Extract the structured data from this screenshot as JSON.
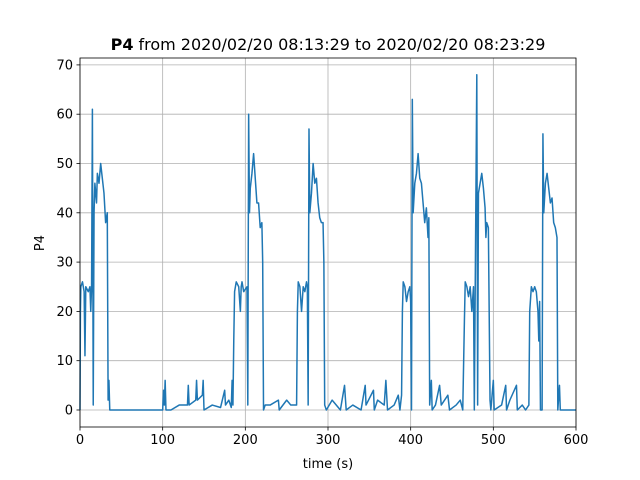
{
  "chart_data": {
    "type": "line",
    "title_bold": "P4",
    "title": "from 2020/02/20 08:13:29 to 2020/02/20 08:23:29",
    "x_label": "time (s)",
    "y_label": "P4",
    "color": "#1f77b4",
    "grid": true,
    "xlim": [
      0,
      600
    ],
    "ylim": [
      -3.45,
      71.4
    ],
    "xticks": [
      0,
      100,
      200,
      300,
      400,
      500,
      600
    ],
    "yticks": [
      0,
      10,
      20,
      30,
      40,
      50,
      60,
      70
    ],
    "x": [
      0,
      0.5,
      1,
      3,
      5,
      6,
      7,
      10,
      12,
      13,
      14,
      15,
      16,
      17,
      18,
      20,
      21,
      23,
      25,
      27,
      29,
      31,
      33,
      34,
      35,
      36,
      40,
      100,
      101,
      102,
      103,
      104,
      110,
      120,
      130,
      131,
      132,
      140,
      141,
      142,
      148,
      149,
      150,
      160,
      170,
      175,
      176,
      180,
      183,
      184,
      185,
      186,
      187,
      189,
      192,
      194,
      195,
      196,
      198,
      202,
      203,
      204,
      205,
      206,
      208,
      210,
      212,
      214,
      216,
      218,
      220,
      221,
      222,
      224,
      230,
      240,
      241,
      250,
      255,
      262,
      263,
      264,
      266,
      268,
      270,
      272,
      274,
      275,
      276,
      277,
      278,
      280,
      282,
      284,
      286,
      288,
      290,
      292,
      294,
      295,
      296,
      298,
      305,
      315,
      320,
      322,
      330,
      340,
      345,
      346,
      355,
      356,
      360,
      368,
      370,
      372,
      380,
      385,
      387,
      389,
      390,
      391,
      393,
      395,
      397,
      399,
      400,
      401,
      402,
      403,
      405,
      407,
      409,
      411,
      413,
      415,
      417,
      419,
      421,
      422,
      423,
      425,
      426,
      430,
      435,
      437,
      445,
      447,
      455,
      460,
      463,
      465,
      466,
      468,
      470,
      472,
      474,
      476,
      477,
      480,
      481,
      482,
      484,
      486,
      488,
      490,
      491,
      492,
      494,
      496,
      497,
      500,
      501,
      510,
      515,
      516,
      520,
      528,
      529,
      535,
      539,
      543,
      544,
      546,
      548,
      550,
      552,
      554,
      555,
      556,
      557,
      559,
      560,
      561,
      563,
      565,
      567,
      569,
      571,
      573,
      575,
      577,
      578,
      580,
      581,
      590,
      600
    ],
    "values": [
      0,
      20,
      25,
      26,
      24,
      11,
      25,
      24,
      25,
      20,
      25,
      61,
      1,
      40,
      46,
      42,
      48,
      46,
      50,
      47,
      44,
      38,
      40,
      2,
      6,
      0,
      0,
      0,
      4,
      1,
      6,
      0,
      0,
      1,
      1,
      5,
      1,
      2,
      6,
      2,
      3,
      6,
      0,
      1,
      0.5,
      4,
      1,
      2,
      0.5,
      6,
      1,
      14,
      24,
      26,
      25,
      20,
      25,
      26,
      24,
      25,
      1,
      60,
      40,
      45,
      48,
      52,
      47,
      42,
      42,
      37,
      38,
      30,
      0,
      1,
      1,
      2,
      0,
      2,
      1,
      1,
      20,
      26,
      25,
      20,
      25,
      24,
      26,
      25,
      1,
      57,
      40,
      44,
      50,
      46,
      47,
      42,
      39,
      38,
      38,
      30,
      1,
      0,
      2,
      0,
      5,
      0,
      1,
      0,
      5,
      1,
      4,
      0,
      2,
      1,
      6,
      0,
      1,
      3,
      0,
      3,
      20,
      26,
      25,
      22,
      24,
      25,
      22,
      0,
      63,
      40,
      46,
      48,
      52,
      47,
      46,
      42,
      38,
      41,
      35,
      39,
      1,
      6,
      0,
      1,
      5,
      1,
      3,
      0,
      1,
      2,
      0,
      18,
      26,
      25,
      23,
      25,
      20,
      25,
      0,
      68,
      1,
      44,
      46,
      48,
      45,
      41,
      35,
      38,
      37,
      2,
      0,
      6,
      0,
      1,
      5,
      0,
      2,
      5,
      0,
      1,
      0,
      1,
      20,
      25,
      24,
      25,
      24,
      20,
      14,
      22,
      0,
      0,
      56,
      40,
      46,
      48,
      45,
      42,
      43,
      38,
      37,
      35,
      0,
      5,
      0,
      0,
      0
    ]
  }
}
